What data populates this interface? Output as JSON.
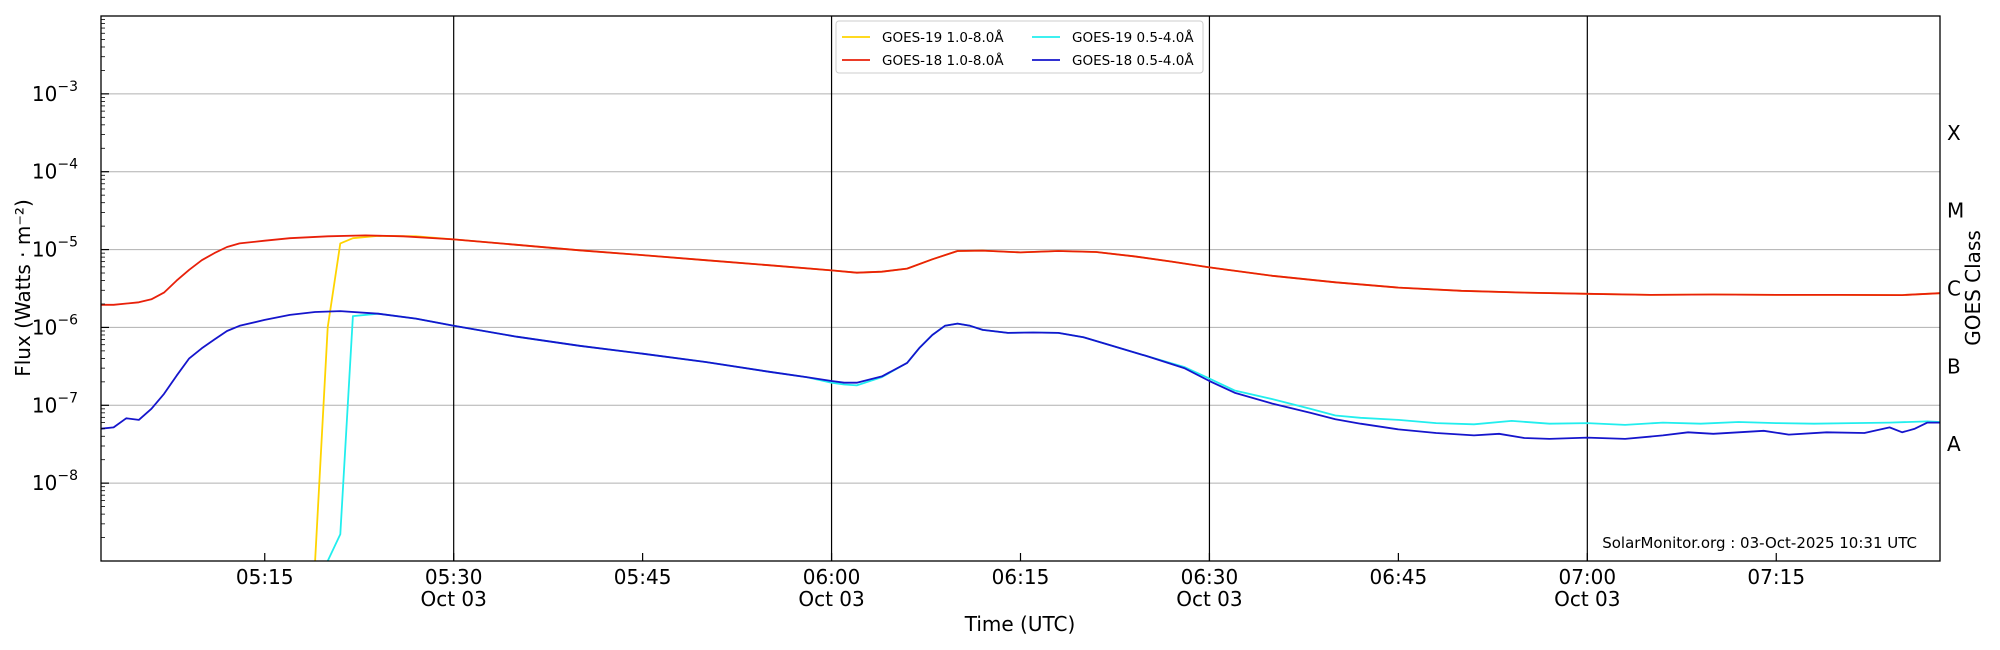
{
  "chart_data": {
    "type": "line",
    "xlabel": "Time (UTC)",
    "ylabel": "Flux (Watts · m⁻²)",
    "right_axis_label": "GOES Class",
    "credit": "SolarMonitor.org : 03-Oct-2025 10:31 UTC",
    "yscale": "log",
    "xlim": [
      "05:02",
      "07:28"
    ],
    "ylim": [
      1e-09,
      0.01
    ],
    "y_ticks": [
      {
        "value": 1e-08,
        "base": "10",
        "exp": "−8"
      },
      {
        "value": 1e-07,
        "base": "10",
        "exp": "−7"
      },
      {
        "value": 1e-06,
        "base": "10",
        "exp": "−6"
      },
      {
        "value": 1e-05,
        "base": "10",
        "exp": "−5"
      },
      {
        "value": 0.0001,
        "base": "10",
        "exp": "−4"
      },
      {
        "value": 0.001,
        "base": "10",
        "exp": "−3"
      }
    ],
    "x_ticks": [
      {
        "time": "05:15",
        "label": "05:15",
        "sub": ""
      },
      {
        "time": "05:30",
        "label": "05:30",
        "sub": "Oct 03"
      },
      {
        "time": "05:45",
        "label": "05:45",
        "sub": ""
      },
      {
        "time": "06:00",
        "label": "06:00",
        "sub": "Oct 03"
      },
      {
        "time": "06:15",
        "label": "06:15",
        "sub": ""
      },
      {
        "time": "06:30",
        "label": "06:30",
        "sub": "Oct 03"
      },
      {
        "time": "06:45",
        "label": "06:45",
        "sub": ""
      },
      {
        "time": "07:00",
        "label": "07:00",
        "sub": "Oct 03"
      },
      {
        "time": "07:15",
        "label": "07:15",
        "sub": ""
      }
    ],
    "vertical_lines": [
      "05:30",
      "06:00",
      "06:30",
      "07:00"
    ],
    "goes_classes": [
      {
        "label": "A",
        "value": 3.16e-08
      },
      {
        "label": "B",
        "value": 3.16e-07
      },
      {
        "label": "C",
        "value": 3.16e-06
      },
      {
        "label": "M",
        "value": 3.16e-05
      },
      {
        "label": "X",
        "value": 0.000316
      }
    ],
    "legend_position": "top-center",
    "grid": "horizontal",
    "series": [
      {
        "name": "GOES-19 1.0-8.0Å",
        "color": "#ffd400",
        "points": [
          [
            "05:19",
            1e-09
          ],
          [
            "05:20",
            1e-06
          ],
          [
            "05:21",
            1.2e-05
          ],
          [
            "05:22",
            1.4e-05
          ],
          [
            "05:24",
            1.5e-05
          ],
          [
            "05:27",
            1.48e-05
          ],
          [
            "05:30",
            1.35e-05
          ],
          [
            "05:35",
            1.15e-05
          ],
          [
            "05:40",
            9.8e-06
          ],
          [
            "05:45",
            8.5e-06
          ],
          [
            "05:50",
            7.3e-06
          ],
          [
            "05:55",
            6.3e-06
          ],
          [
            "06:00",
            5.4e-06
          ],
          [
            "06:02",
            5.05e-06
          ],
          [
            "06:04",
            5.2e-06
          ],
          [
            "06:06",
            5.7e-06
          ],
          [
            "06:08",
            7.5e-06
          ],
          [
            "06:10",
            9.6e-06
          ],
          [
            "06:12",
            9.7e-06
          ],
          [
            "06:15",
            9.2e-06
          ],
          [
            "06:18",
            9.6e-06
          ],
          [
            "06:21",
            9.3e-06
          ],
          [
            "06:24",
            8.2e-06
          ],
          [
            "06:27",
            7e-06
          ],
          [
            "06:30",
            5.9e-06
          ],
          [
            "06:35",
            4.6e-06
          ],
          [
            "06:40",
            3.8e-06
          ],
          [
            "06:45",
            3.25e-06
          ],
          [
            "06:50",
            2.95e-06
          ],
          [
            "06:55",
            2.8e-06
          ],
          [
            "07:00",
            2.7e-06
          ],
          [
            "07:05",
            2.62e-06
          ],
          [
            "07:10",
            2.65e-06
          ],
          [
            "07:15",
            2.62e-06
          ],
          [
            "07:20",
            2.62e-06
          ],
          [
            "07:25",
            2.6e-06
          ],
          [
            "07:28",
            2.75e-06
          ]
        ]
      },
      {
        "name": "GOES-18 1.0-8.0Å",
        "color": "#e8200a",
        "points": [
          [
            "05:02",
            1.95e-06
          ],
          [
            "05:03",
            1.95e-06
          ],
          [
            "05:05",
            2.1e-06
          ],
          [
            "05:06",
            2.3e-06
          ],
          [
            "05:07",
            2.8e-06
          ],
          [
            "05:08",
            4e-06
          ],
          [
            "05:09",
            5.5e-06
          ],
          [
            "05:10",
            7.3e-06
          ],
          [
            "05:11",
            9e-06
          ],
          [
            "05:12",
            1.08e-05
          ],
          [
            "05:13",
            1.2e-05
          ],
          [
            "05:15",
            1.3e-05
          ],
          [
            "05:17",
            1.4e-05
          ],
          [
            "05:20",
            1.48e-05
          ],
          [
            "05:23",
            1.52e-05
          ],
          [
            "05:26",
            1.48e-05
          ],
          [
            "05:30",
            1.35e-05
          ],
          [
            "05:35",
            1.15e-05
          ],
          [
            "05:40",
            9.8e-06
          ],
          [
            "05:45",
            8.5e-06
          ],
          [
            "05:50",
            7.3e-06
          ],
          [
            "05:55",
            6.3e-06
          ],
          [
            "06:00",
            5.4e-06
          ],
          [
            "06:02",
            5.05e-06
          ],
          [
            "06:04",
            5.2e-06
          ],
          [
            "06:06",
            5.7e-06
          ],
          [
            "06:08",
            7.5e-06
          ],
          [
            "06:10",
            9.6e-06
          ],
          [
            "06:12",
            9.7e-06
          ],
          [
            "06:15",
            9.2e-06
          ],
          [
            "06:18",
            9.6e-06
          ],
          [
            "06:21",
            9.3e-06
          ],
          [
            "06:24",
            8.2e-06
          ],
          [
            "06:27",
            7e-06
          ],
          [
            "06:30",
            5.9e-06
          ],
          [
            "06:35",
            4.6e-06
          ],
          [
            "06:40",
            3.8e-06
          ],
          [
            "06:45",
            3.25e-06
          ],
          [
            "06:50",
            2.95e-06
          ],
          [
            "06:55",
            2.8e-06
          ],
          [
            "07:00",
            2.7e-06
          ],
          [
            "07:05",
            2.62e-06
          ],
          [
            "07:10",
            2.65e-06
          ],
          [
            "07:15",
            2.62e-06
          ],
          [
            "07:20",
            2.62e-06
          ],
          [
            "07:25",
            2.6e-06
          ],
          [
            "07:28",
            2.75e-06
          ]
        ]
      },
      {
        "name": "GOES-19 0.5-4.0Å",
        "color": "#22eeee",
        "points": [
          [
            "05:20",
            1e-09
          ],
          [
            "05:21",
            2.2e-09
          ],
          [
            "05:22",
            1.4e-06
          ],
          [
            "05:24",
            1.5e-06
          ],
          [
            "05:27",
            1.3e-06
          ],
          [
            "05:30",
            1.05e-06
          ],
          [
            "05:35",
            7.6e-07
          ],
          [
            "05:40",
            5.8e-07
          ],
          [
            "05:45",
            4.6e-07
          ],
          [
            "05:50",
            3.6e-07
          ],
          [
            "05:55",
            2.7e-07
          ],
          [
            "05:58",
            2.3e-07
          ],
          [
            "06:00",
            1.95e-07
          ],
          [
            "06:01",
            1.85e-07
          ],
          [
            "06:02",
            1.8e-07
          ],
          [
            "06:04",
            2.3e-07
          ],
          [
            "06:06",
            3.5e-07
          ],
          [
            "06:07",
            5.5e-07
          ],
          [
            "06:08",
            8e-07
          ],
          [
            "06:09",
            1.05e-06
          ],
          [
            "06:10",
            1.12e-06
          ],
          [
            "06:11",
            1.05e-06
          ],
          [
            "06:12",
            9.3e-07
          ],
          [
            "06:14",
            8.5e-07
          ],
          [
            "06:16",
            8.6e-07
          ],
          [
            "06:18",
            8.5e-07
          ],
          [
            "06:20",
            7.5e-07
          ],
          [
            "06:22",
            6e-07
          ],
          [
            "06:25",
            4.3e-07
          ],
          [
            "06:28",
            3.1e-07
          ],
          [
            "06:30",
            2.2e-07
          ],
          [
            "06:32",
            1.55e-07
          ],
          [
            "06:35",
            1.2e-07
          ],
          [
            "06:38",
            9e-08
          ],
          [
            "06:40",
            7.4e-08
          ],
          [
            "06:42",
            6.9e-08
          ],
          [
            "06:45",
            6.5e-08
          ],
          [
            "06:48",
            5.9e-08
          ],
          [
            "06:51",
            5.7e-08
          ],
          [
            "06:54",
            6.3e-08
          ],
          [
            "06:57",
            5.8e-08
          ],
          [
            "07:00",
            5.9e-08
          ],
          [
            "07:03",
            5.6e-08
          ],
          [
            "07:06",
            6e-08
          ],
          [
            "07:09",
            5.8e-08
          ],
          [
            "07:12",
            6.1e-08
          ],
          [
            "07:15",
            5.9e-08
          ],
          [
            "07:18",
            5.8e-08
          ],
          [
            "07:21",
            5.9e-08
          ],
          [
            "07:24",
            6e-08
          ],
          [
            "07:27",
            6.2e-08
          ],
          [
            "07:28",
            6.1e-08
          ]
        ]
      },
      {
        "name": "GOES-18 0.5-4.0Å",
        "color": "#1515cc",
        "points": [
          [
            "05:02",
            5e-08
          ],
          [
            "05:03",
            5.2e-08
          ],
          [
            "05:04",
            6.8e-08
          ],
          [
            "05:05",
            6.5e-08
          ],
          [
            "05:06",
            9e-08
          ],
          [
            "05:07",
            1.4e-07
          ],
          [
            "05:08",
            2.4e-07
          ],
          [
            "05:09",
            4e-07
          ],
          [
            "05:10",
            5.4e-07
          ],
          [
            "05:11",
            7e-07
          ],
          [
            "05:12",
            9e-07
          ],
          [
            "05:13",
            1.05e-06
          ],
          [
            "05:15",
            1.25e-06
          ],
          [
            "05:17",
            1.45e-06
          ],
          [
            "05:19",
            1.58e-06
          ],
          [
            "05:21",
            1.62e-06
          ],
          [
            "05:24",
            1.5e-06
          ],
          [
            "05:27",
            1.3e-06
          ],
          [
            "05:30",
            1.05e-06
          ],
          [
            "05:35",
            7.6e-07
          ],
          [
            "05:40",
            5.8e-07
          ],
          [
            "05:45",
            4.6e-07
          ],
          [
            "05:50",
            3.6e-07
          ],
          [
            "05:55",
            2.7e-07
          ],
          [
            "05:58",
            2.3e-07
          ],
          [
            "06:00",
            2.05e-07
          ],
          [
            "06:01",
            1.95e-07
          ],
          [
            "06:02",
            1.95e-07
          ],
          [
            "06:04",
            2.35e-07
          ],
          [
            "06:06",
            3.5e-07
          ],
          [
            "06:07",
            5.5e-07
          ],
          [
            "06:08",
            8e-07
          ],
          [
            "06:09",
            1.05e-06
          ],
          [
            "06:10",
            1.12e-06
          ],
          [
            "06:11",
            1.05e-06
          ],
          [
            "06:12",
            9.3e-07
          ],
          [
            "06:14",
            8.5e-07
          ],
          [
            "06:16",
            8.6e-07
          ],
          [
            "06:18",
            8.5e-07
          ],
          [
            "06:20",
            7.5e-07
          ],
          [
            "06:22",
            6e-07
          ],
          [
            "06:25",
            4.3e-07
          ],
          [
            "06:28",
            3e-07
          ],
          [
            "06:30",
            2.05e-07
          ],
          [
            "06:32",
            1.45e-07
          ],
          [
            "06:35",
            1.05e-07
          ],
          [
            "06:38",
            8e-08
          ],
          [
            "06:40",
            6.6e-08
          ],
          [
            "06:42",
            5.8e-08
          ],
          [
            "06:45",
            4.9e-08
          ],
          [
            "06:48",
            4.4e-08
          ],
          [
            "06:51",
            4.1e-08
          ],
          [
            "06:53",
            4.3e-08
          ],
          [
            "06:55",
            3.8e-08
          ],
          [
            "06:57",
            3.7e-08
          ],
          [
            "07:00",
            3.85e-08
          ],
          [
            "07:03",
            3.7e-08
          ],
          [
            "07:06",
            4.1e-08
          ],
          [
            "07:08",
            4.5e-08
          ],
          [
            "07:10",
            4.3e-08
          ],
          [
            "07:14",
            4.7e-08
          ],
          [
            "07:16",
            4.2e-08
          ],
          [
            "07:19",
            4.5e-08
          ],
          [
            "07:22",
            4.4e-08
          ],
          [
            "07:24",
            5.2e-08
          ],
          [
            "07:25",
            4.5e-08
          ],
          [
            "07:26",
            5e-08
          ],
          [
            "07:27",
            6e-08
          ],
          [
            "07:28",
            6e-08
          ]
        ]
      }
    ]
  }
}
